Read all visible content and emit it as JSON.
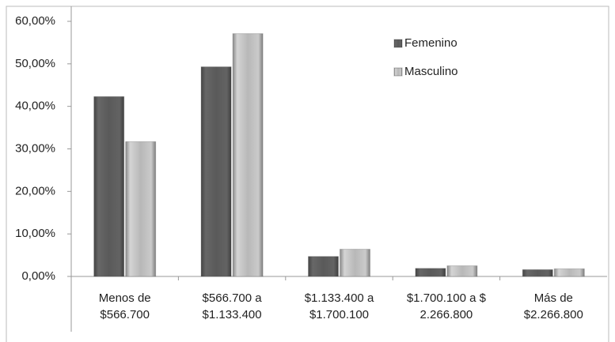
{
  "chart_data": {
    "type": "bar",
    "categories": [
      [
        "Menos de",
        "$566.700"
      ],
      [
        "$566.700 a",
        "$1.133.400"
      ],
      [
        "$1.133.400 a",
        "$1.700.100"
      ],
      [
        "$1.700.100 a $",
        "2.266.800"
      ],
      [
        "Más de",
        "$2.266.800"
      ]
    ],
    "series": [
      {
        "name": "Femenino",
        "color": "#5a5a5a",
        "values": [
          42.3,
          49.3,
          4.7,
          1.9,
          1.6
        ]
      },
      {
        "name": "Masculino",
        "color": "#b8b8b8",
        "values": [
          31.7,
          57.1,
          6.4,
          2.5,
          1.8
        ]
      }
    ],
    "ylim": [
      0,
      60
    ],
    "yticks": [
      {
        "value": 0,
        "label": "0,00%"
      },
      {
        "value": 10,
        "label": "10,00%"
      },
      {
        "value": 20,
        "label": "20,00%"
      },
      {
        "value": 30,
        "label": "30,00%"
      },
      {
        "value": 40,
        "label": "40,00%"
      },
      {
        "value": 50,
        "label": "50,00%"
      },
      {
        "value": 60,
        "label": "60,00%"
      }
    ],
    "legend": "top-right"
  }
}
